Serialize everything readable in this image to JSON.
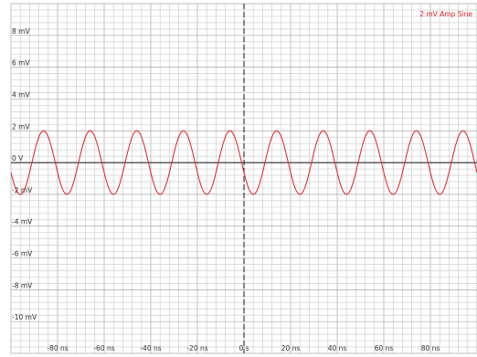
{
  "chart_data": {
    "type": "line",
    "title": "",
    "xlabel": "",
    "ylabel": "",
    "xlim": [
      -100,
      100
    ],
    "ylim": [
      -12,
      10
    ],
    "grid": true,
    "legend_position": "top-right",
    "x_ticks": [
      -80,
      -60,
      -40,
      -20,
      0,
      20,
      40,
      60,
      80
    ],
    "x_tick_labels": [
      "-80 ns",
      "-60 ns",
      "-40 ns",
      "-20 ns",
      "0 s",
      "20 ns",
      "40 ns",
      "60 ns",
      "80 ns"
    ],
    "y_ticks": [
      8,
      6,
      4,
      2,
      0,
      -2,
      -4,
      -6,
      -8,
      -10
    ],
    "y_tick_labels": [
      "8 mV",
      "6 mV",
      "4 mV",
      "2 mV",
      "0 V",
      "-2 mV",
      "-4 mV",
      "-6 mV",
      "-8 mV",
      "-10 mV"
    ],
    "series": [
      {
        "name": "2 mV Amp Sine",
        "color": "#e02020",
        "amplitude": 2,
        "period": 20,
        "phase_x": -96,
        "x_min": -100,
        "x_max": 100
      }
    ]
  }
}
